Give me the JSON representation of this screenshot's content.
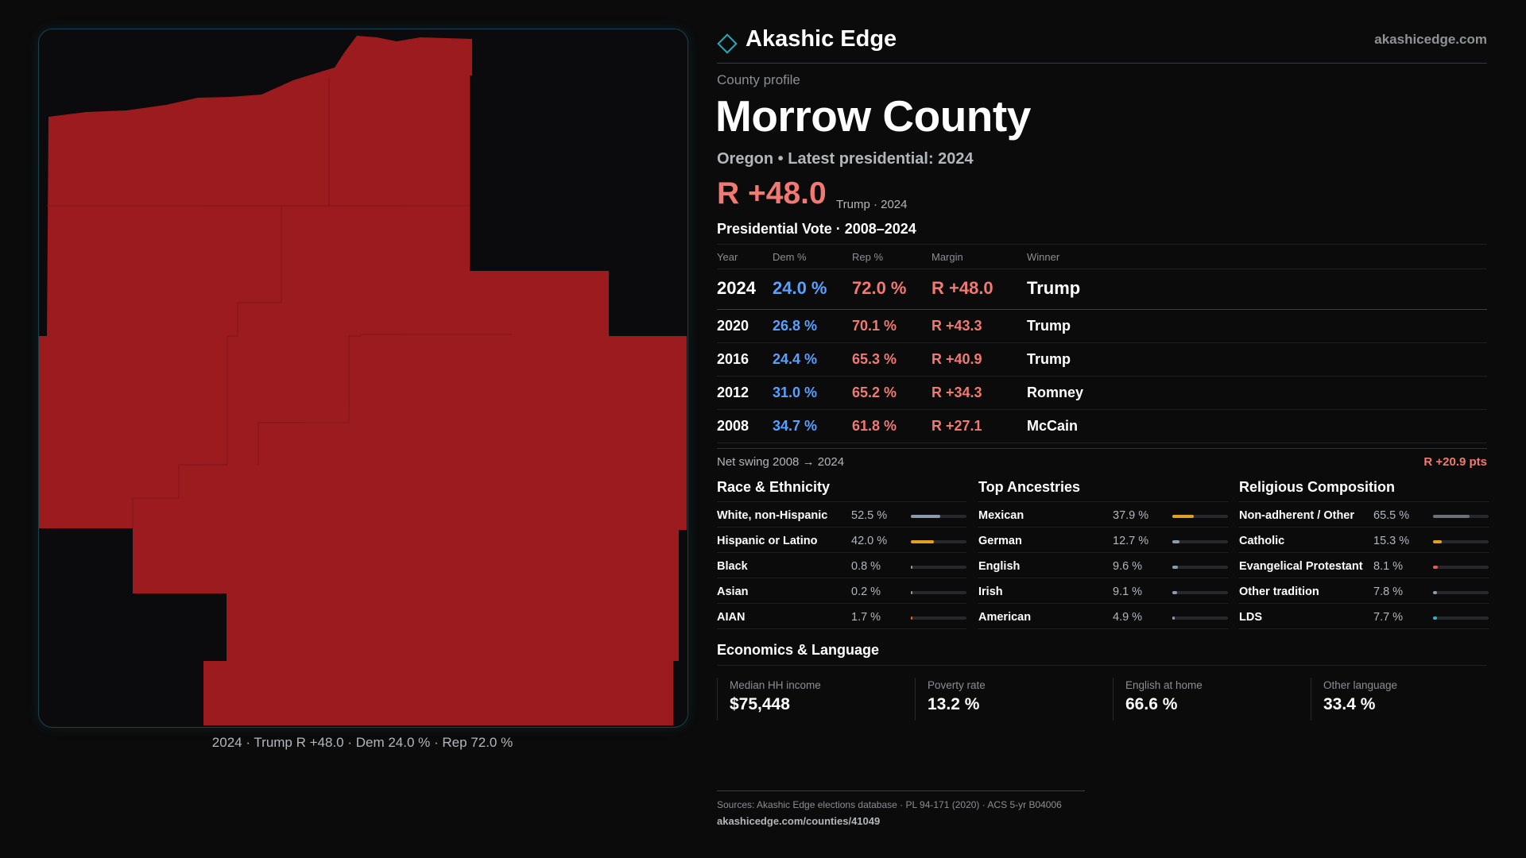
{
  "map": {
    "caption": "2024 · Trump R +48.0 · Dem 24.0 % · Rep 72.0 %",
    "fill_color": "#9b1b1f"
  },
  "brand": {
    "name": "Akashic Edge",
    "url": "akashicedge.com",
    "logo_icon": "diamond-outline"
  },
  "profile": {
    "eyebrow": "County profile",
    "county": "Morrow County",
    "subtitle": "Oregon • Latest presidential: 2024",
    "margin": "R +48.0",
    "margin_note": "Trump · 2024"
  },
  "vote": {
    "section_title": "Presidential Vote · 2008–2024",
    "headers": {
      "year": "Year",
      "dem": "Dem %",
      "rep": "Rep %",
      "margin": "Margin",
      "winner": "Winner"
    },
    "rows": [
      {
        "year": "2024",
        "dem": "24.0 %",
        "rep": "72.0 %",
        "margin": "R +48.0",
        "winner": "Trump"
      },
      {
        "year": "2020",
        "dem": "26.8 %",
        "rep": "70.1 %",
        "margin": "R +43.3",
        "winner": "Trump"
      },
      {
        "year": "2016",
        "dem": "24.4 %",
        "rep": "65.3 %",
        "margin": "R +40.9",
        "winner": "Trump"
      },
      {
        "year": "2012",
        "dem": "31.0 %",
        "rep": "65.2 %",
        "margin": "R +34.3",
        "winner": "Romney"
      },
      {
        "year": "2008",
        "dem": "34.7 %",
        "rep": "61.8 %",
        "margin": "R +27.1",
        "winner": "McCain"
      }
    ],
    "swing_label": "Net swing 2008 → 2024",
    "swing_value": "R +20.9 pts"
  },
  "race": {
    "title": "Race & Ethnicity",
    "items": [
      {
        "label": "White, non-Hispanic",
        "value": "52.5 %",
        "pct": 52.5,
        "color": "#8d9aab"
      },
      {
        "label": "Hispanic or Latino",
        "value": "42.0 %",
        "pct": 42.0,
        "color": "#e0a020"
      },
      {
        "label": "Black",
        "value": "0.8 %",
        "pct": 0.8,
        "color": "#8d9aab"
      },
      {
        "label": "Asian",
        "value": "0.2 %",
        "pct": 0.2,
        "color": "#8d9aab"
      },
      {
        "label": "AIAN",
        "value": "1.7 %",
        "pct": 1.7,
        "color": "#e06a20"
      }
    ]
  },
  "ancestry": {
    "title": "Top Ancestries",
    "items": [
      {
        "label": "Mexican",
        "value": "37.9 %",
        "pct": 37.9,
        "color": "#e0a020"
      },
      {
        "label": "German",
        "value": "12.7 %",
        "pct": 12.7,
        "color": "#8d9aab"
      },
      {
        "label": "English",
        "value": "9.6 %",
        "pct": 9.6,
        "color": "#8d9aab"
      },
      {
        "label": "Irish",
        "value": "9.1 %",
        "pct": 9.1,
        "color": "#8d9aab"
      },
      {
        "label": "American",
        "value": "4.9 %",
        "pct": 4.9,
        "color": "#8d9aab"
      }
    ]
  },
  "religion": {
    "title": "Religious Composition",
    "items": [
      {
        "label": "Non-adherent / Other",
        "value": "65.5 %",
        "pct": 65.5,
        "color": "#6b7079"
      },
      {
        "label": "Catholic",
        "value": "15.3 %",
        "pct": 15.3,
        "color": "#e0a020"
      },
      {
        "label": "Evangelical Protestant",
        "value": "8.1 %",
        "pct": 8.1,
        "color": "#e05a5a"
      },
      {
        "label": "Other tradition",
        "value": "7.8 %",
        "pct": 7.8,
        "color": "#8d9aab"
      },
      {
        "label": "LDS",
        "value": "7.7 %",
        "pct": 7.7,
        "color": "#2bb5c0"
      }
    ]
  },
  "economics": {
    "title": "Economics & Language",
    "items": [
      {
        "label": "Median HH income",
        "value": "$75,448"
      },
      {
        "label": "Poverty rate",
        "value": "13.2 %"
      },
      {
        "label": "English at home",
        "value": "66.6 %"
      },
      {
        "label": "Other language",
        "value": "33.4 %"
      }
    ]
  },
  "sources": {
    "text": "Sources: Akashic Edge elections database · PL 94-171 (2020) · ACS 5-yr B04006",
    "link": "akashicedge.com/counties/41049"
  }
}
